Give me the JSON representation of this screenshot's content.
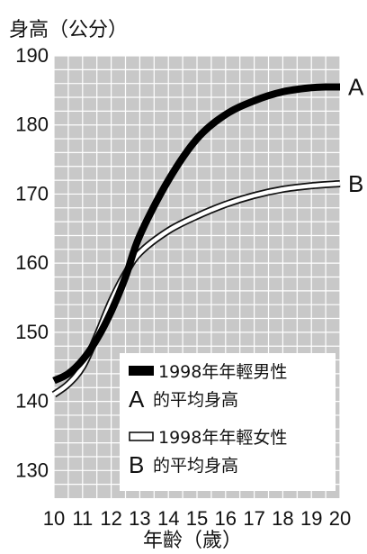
{
  "chart_data": {
    "type": "line",
    "ylabel": "身高（公分）",
    "xlabel": "年齡（歲）",
    "xlim": [
      10,
      20
    ],
    "ylim": [
      126,
      190
    ],
    "x_ticks": [
      "10",
      "11",
      "12",
      "13",
      "14",
      "15",
      "16",
      "17",
      "18",
      "19",
      "20"
    ],
    "y_ticks": [
      "190",
      "180",
      "170",
      "160",
      "150",
      "140",
      "130"
    ],
    "grid": true,
    "plot_background": "#c8c8c8",
    "grid_color": "#ffffff",
    "series": [
      {
        "name": "A",
        "style": "solid-black",
        "x": [
          10,
          10.5,
          11,
          11.5,
          12,
          12.5,
          13,
          14,
          15,
          16,
          17,
          18,
          19,
          19.5,
          20
        ],
        "y": [
          143,
          144,
          146,
          149,
          153,
          158,
          164,
          172,
          178,
          181.5,
          183.5,
          184.8,
          185.4,
          185.5,
          185.5
        ]
      },
      {
        "name": "B",
        "style": "hollow-white",
        "x": [
          10,
          10.5,
          11,
          11.5,
          12,
          12.5,
          13,
          14,
          15,
          16,
          17,
          18,
          19,
          20
        ],
        "y": [
          141,
          142.5,
          145,
          149.5,
          154.5,
          158.5,
          161.5,
          164.7,
          166.8,
          168.5,
          169.8,
          170.7,
          171.2,
          171.5
        ]
      }
    ],
    "legend": {
      "placement": "bottom-right",
      "entries": [
        {
          "swatch": "solid-black",
          "line1": "1998年年輕男性",
          "letter": "A",
          "line2": "的平均身高"
        },
        {
          "swatch": "hollow-white",
          "line1": "1998年年輕女性",
          "letter": "B",
          "line2": "的平均身高"
        }
      ]
    }
  }
}
